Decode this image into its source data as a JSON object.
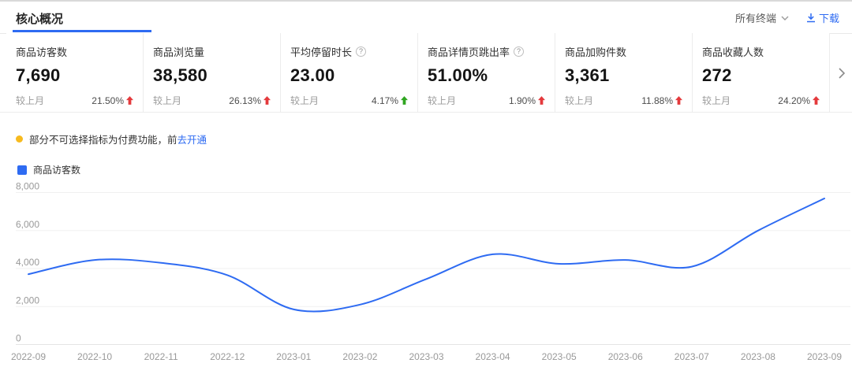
{
  "header": {
    "title": "核心概况",
    "terminal_filter": "所有终端",
    "download_label": "下载"
  },
  "metrics": [
    {
      "title": "商品访客数",
      "value": "7,690",
      "compare_label": "较上月",
      "change": "21.50%",
      "direction": "up",
      "has_help": false
    },
    {
      "title": "商品浏览量",
      "value": "38,580",
      "compare_label": "较上月",
      "change": "26.13%",
      "direction": "up",
      "has_help": false
    },
    {
      "title": "平均停留时长",
      "value": "23.00",
      "compare_label": "较上月",
      "change": "4.17%",
      "direction": "down",
      "has_help": true
    },
    {
      "title": "商品详情页跳出率",
      "value": "51.00%",
      "compare_label": "较上月",
      "change": "1.90%",
      "direction": "up",
      "has_help": true
    },
    {
      "title": "商品加购件数",
      "value": "3,361",
      "compare_label": "较上月",
      "change": "11.88%",
      "direction": "up",
      "has_help": false
    },
    {
      "title": "商品收藏人数",
      "value": "272",
      "compare_label": "较上月",
      "change": "24.20%",
      "direction": "up",
      "has_help": false
    }
  ],
  "notice": {
    "text": "部分不可选择指标为付费功能，前",
    "link": "去开通"
  },
  "chart_data": {
    "type": "line",
    "title": "商品访客数",
    "legend": [
      "商品访客数"
    ],
    "legend_position": "top-left",
    "x": [
      "2022-09",
      "2022-10",
      "2022-11",
      "2022-12",
      "2023-01",
      "2023-02",
      "2023-03",
      "2023-04",
      "2023-05",
      "2023-06",
      "2023-07",
      "2023-08",
      "2023-09"
    ],
    "series": [
      {
        "name": "商品访客数",
        "values": [
          3700,
          4450,
          4300,
          3650,
          1850,
          2100,
          3450,
          4750,
          4250,
          4450,
          4100,
          6000,
          7690
        ]
      }
    ],
    "xlabel": "",
    "ylabel": "",
    "ylim": [
      0,
      8000
    ],
    "yticks": [
      0,
      2000,
      4000,
      6000,
      8000
    ],
    "ytick_labels": [
      "0",
      "2,000",
      "4,000",
      "6,000",
      "8,000"
    ],
    "grid": "horizontal-only",
    "smooth": true
  },
  "icons": {
    "help_glyph": "?"
  },
  "colors": {
    "accent_blue": "#2E6BF2",
    "up_red": "#E4393C",
    "down_green": "#2FA520",
    "notice_yellow": "#F7BA1E",
    "axis_text": "#999999",
    "grid_line": "#f0f0f0"
  }
}
